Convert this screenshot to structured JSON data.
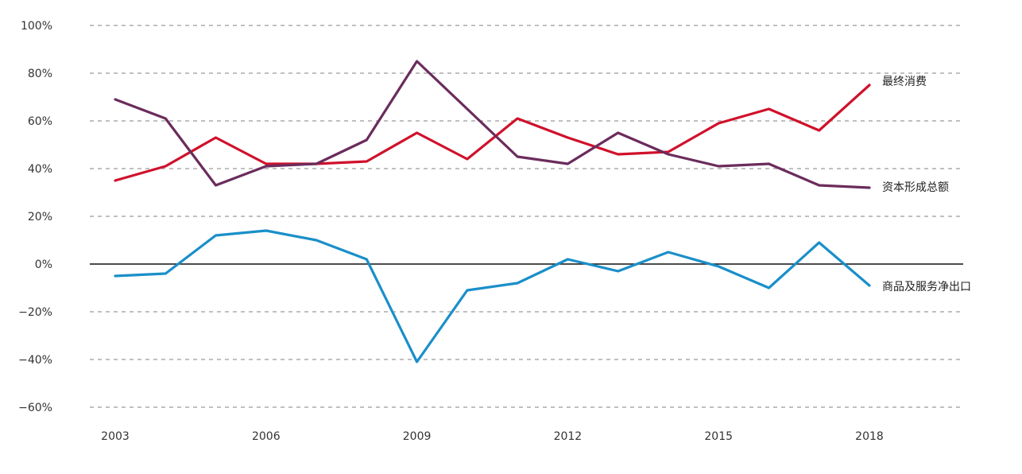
{
  "chart_data": {
    "type": "line",
    "x": [
      2003,
      2004,
      2005,
      2006,
      2007,
      2008,
      2009,
      2010,
      2011,
      2012,
      2013,
      2014,
      2015,
      2016,
      2017,
      2018
    ],
    "x_tick_labels": [
      "2003",
      "2006",
      "2009",
      "2012",
      "2015",
      "2018"
    ],
    "y_tick_labels": [
      "100%",
      "80%",
      "60%",
      "40%",
      "20%",
      "0%",
      "−20%",
      "−40%",
      "−60%"
    ],
    "ylim": [
      -60,
      100
    ],
    "y_unit": "%",
    "grid": "dashed horizontal",
    "series": [
      {
        "name": "最终消费",
        "color": "#d0112b",
        "values": [
          35,
          41,
          53,
          42,
          42,
          43,
          55,
          44,
          61,
          53,
          46,
          47,
          59,
          65,
          56,
          75
        ]
      },
      {
        "name": "资本形成总额",
        "color": "#6b2c5c",
        "values": [
          69,
          61,
          33,
          41,
          42,
          52,
          85,
          65,
          45,
          42,
          55,
          46,
          41,
          42,
          33,
          32
        ]
      },
      {
        "name": "商品及服务净出口",
        "color": "#1a8fc9",
        "values": [
          -5,
          -4,
          12,
          14,
          10,
          2,
          -41,
          -11,
          -8,
          2,
          -3,
          5,
          -1,
          -10,
          9,
          -9
        ]
      }
    ]
  }
}
